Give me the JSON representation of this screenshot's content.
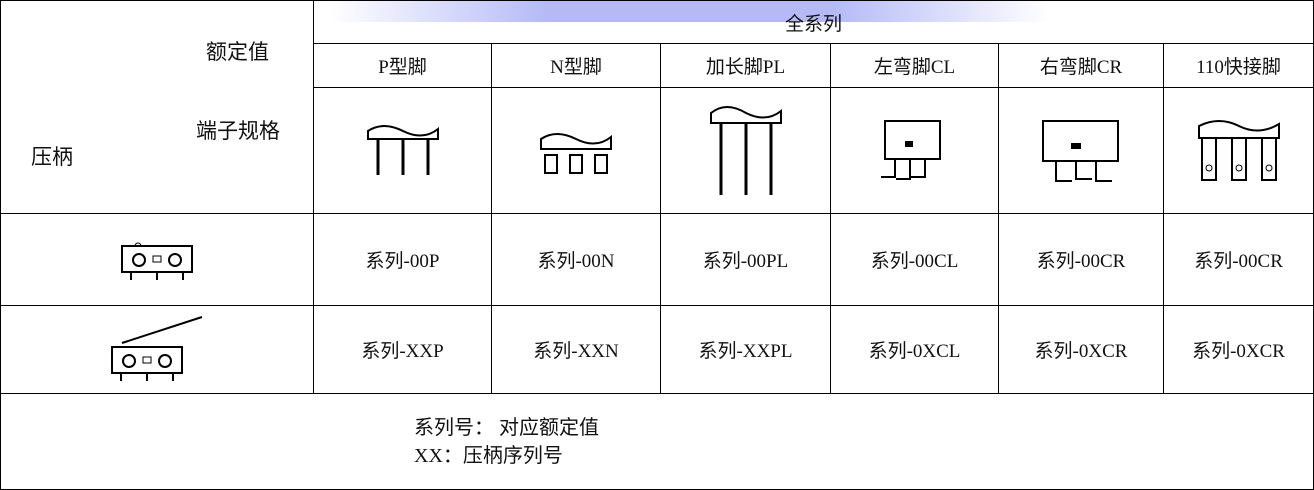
{
  "corner": {
    "rated": "额定值",
    "terminal": "端子规格",
    "lever": "压柄"
  },
  "table": {
    "group": "全系列",
    "columns": [
      "P型脚",
      "N型脚",
      "加长脚PL",
      "左弯脚CL",
      "右弯脚CR",
      "110快接脚"
    ],
    "rows": [
      [
        "系列-00P",
        "系列-00N",
        "系列-00PL",
        "系列-00CL",
        "系列-00CR",
        "系列-00CR"
      ],
      [
        "系列-XXP",
        "系列-XXN",
        "系列-XXPL",
        "系列-0XCL",
        "系列-0XCR",
        "系列-0XCR"
      ]
    ]
  },
  "footer": {
    "lines": [
      "系列号： 对应额定值",
      "XX：压柄序列号"
    ]
  }
}
